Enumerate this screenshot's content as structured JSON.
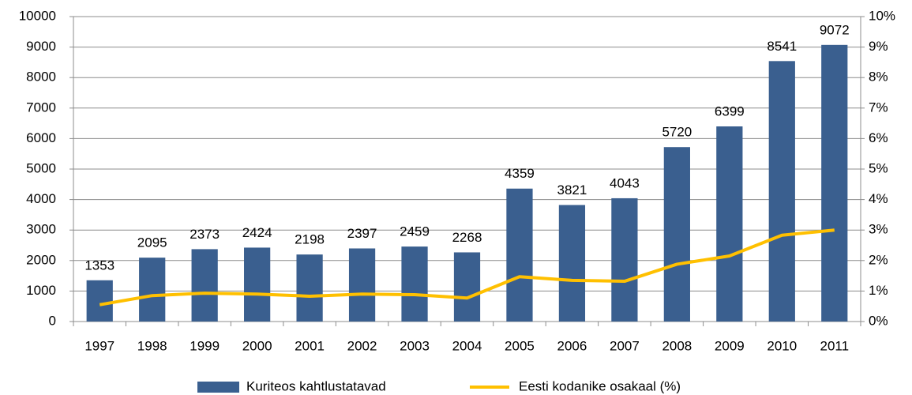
{
  "chart_data": {
    "type": "bar_line",
    "categories": [
      "1997",
      "1998",
      "1999",
      "2000",
      "2001",
      "2002",
      "2003",
      "2004",
      "2005",
      "2006",
      "2007",
      "2008",
      "2009",
      "2010",
      "2011"
    ],
    "series": [
      {
        "name": "Kuriteos kahtlustatavad",
        "type": "bar",
        "color": "#3a5f8f",
        "values": [
          1353,
          2095,
          2373,
          2424,
          2198,
          2397,
          2459,
          2268,
          4359,
          3821,
          4043,
          5720,
          6399,
          8541,
          9072
        ]
      },
      {
        "name": "Eesti kodanike osakaal (%)",
        "type": "line",
        "axis": "y2",
        "color": "#ffc000",
        "values": [
          0.55,
          0.85,
          0.93,
          0.9,
          0.83,
          0.9,
          0.88,
          0.77,
          1.47,
          1.35,
          1.32,
          1.88,
          2.15,
          2.83,
          3.0
        ]
      }
    ],
    "ylim": [
      0,
      10000
    ],
    "yticks": [
      0,
      1000,
      2000,
      3000,
      4000,
      5000,
      6000,
      7000,
      8000,
      9000,
      10000
    ],
    "y2lim": [
      0,
      10
    ],
    "y2ticks": [
      {
        "value": 0,
        "label": "0%"
      },
      {
        "value": 1,
        "label": "1%"
      },
      {
        "value": 2,
        "label": "2%"
      },
      {
        "value": 3,
        "label": "3%"
      },
      {
        "value": 4,
        "label": "4%"
      },
      {
        "value": 5,
        "label": "5%"
      },
      {
        "value": 6,
        "label": "6%"
      },
      {
        "value": 7,
        "label": "7%"
      },
      {
        "value": 8,
        "label": "8%"
      },
      {
        "value": 9,
        "label": "9%"
      },
      {
        "value": 10,
        "label": "10%"
      }
    ],
    "grid": true,
    "legend": "bottom"
  }
}
